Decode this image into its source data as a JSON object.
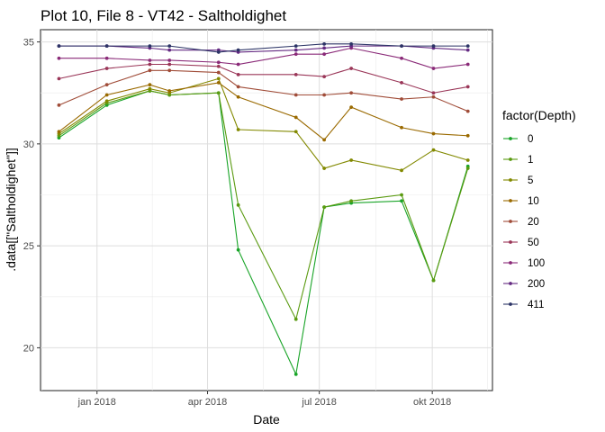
{
  "chart_data": {
    "type": "line",
    "title": "Plot 10, File 8 - VT42  -  Saltholdighet",
    "xlabel": "Date",
    "ylabel": ".data[[\"Saltholdighet\"]]",
    "xlim": [
      "2017-11-16",
      "2018-11-19"
    ],
    "ylim": [
      17.9,
      35.6
    ],
    "grid": true,
    "legend_title": "factor(Depth)",
    "legend_position": "right",
    "x_ticks": [
      {
        "date": "2018-01-01",
        "label": "jan 2018"
      },
      {
        "date": "2018-04-01",
        "label": "apr 2018"
      },
      {
        "date": "2018-07-01",
        "label": "jul 2018"
      },
      {
        "date": "2018-10-01",
        "label": "okt 2018"
      }
    ],
    "y_ticks": [
      20,
      25,
      30,
      35
    ],
    "dates": [
      "2017-12-01",
      "2018-01-09",
      "2018-02-13",
      "2018-03-01",
      "2018-04-10",
      "2018-04-26",
      "2018-06-12",
      "2018-07-05",
      "2018-07-27",
      "2018-09-06",
      "2018-10-02",
      "2018-10-30"
    ],
    "series": [
      {
        "name": "0",
        "color": "#18a427",
        "values": [
          30.3,
          31.9,
          32.6,
          32.4,
          32.5,
          24.8,
          18.7,
          26.9,
          27.1,
          27.2,
          23.3,
          28.9
        ]
      },
      {
        "name": "1",
        "color": "#5a9a10",
        "values": [
          30.4,
          32.0,
          32.6,
          32.4,
          32.5,
          27.0,
          21.4,
          26.9,
          27.2,
          27.5,
          23.3,
          28.8
        ]
      },
      {
        "name": "5",
        "color": "#828900",
        "values": [
          30.5,
          32.1,
          32.7,
          32.5,
          33.2,
          30.7,
          30.6,
          28.8,
          29.2,
          28.7,
          29.7,
          29.2
        ]
      },
      {
        "name": "10",
        "color": "#9a6a00",
        "values": [
          30.6,
          32.4,
          32.9,
          32.6,
          33.0,
          32.3,
          31.3,
          30.2,
          31.8,
          30.8,
          30.5,
          30.4
        ]
      },
      {
        "name": "20",
        "color": "#a04c38",
        "values": [
          31.9,
          32.9,
          33.6,
          33.6,
          33.5,
          32.8,
          32.4,
          32.4,
          32.5,
          32.2,
          32.3,
          31.6
        ]
      },
      {
        "name": "50",
        "color": "#9a3658",
        "values": [
          33.2,
          33.7,
          33.9,
          33.9,
          33.8,
          33.4,
          33.4,
          33.3,
          33.7,
          33.0,
          32.5,
          32.8
        ]
      },
      {
        "name": "100",
        "color": "#8a2a78",
        "values": [
          34.2,
          34.2,
          34.1,
          34.1,
          34.0,
          33.9,
          34.4,
          34.4,
          34.7,
          34.2,
          33.7,
          33.9
        ]
      },
      {
        "name": "200",
        "color": "#642a82",
        "values": [
          34.8,
          34.8,
          34.7,
          34.6,
          34.6,
          34.5,
          34.6,
          34.7,
          34.8,
          34.8,
          34.7,
          34.6
        ]
      },
      {
        "name": "411",
        "color": "#2c3466",
        "values": [
          34.8,
          34.8,
          34.8,
          34.8,
          34.5,
          34.6,
          34.8,
          34.9,
          34.9,
          34.8,
          34.8,
          34.8
        ]
      }
    ]
  }
}
